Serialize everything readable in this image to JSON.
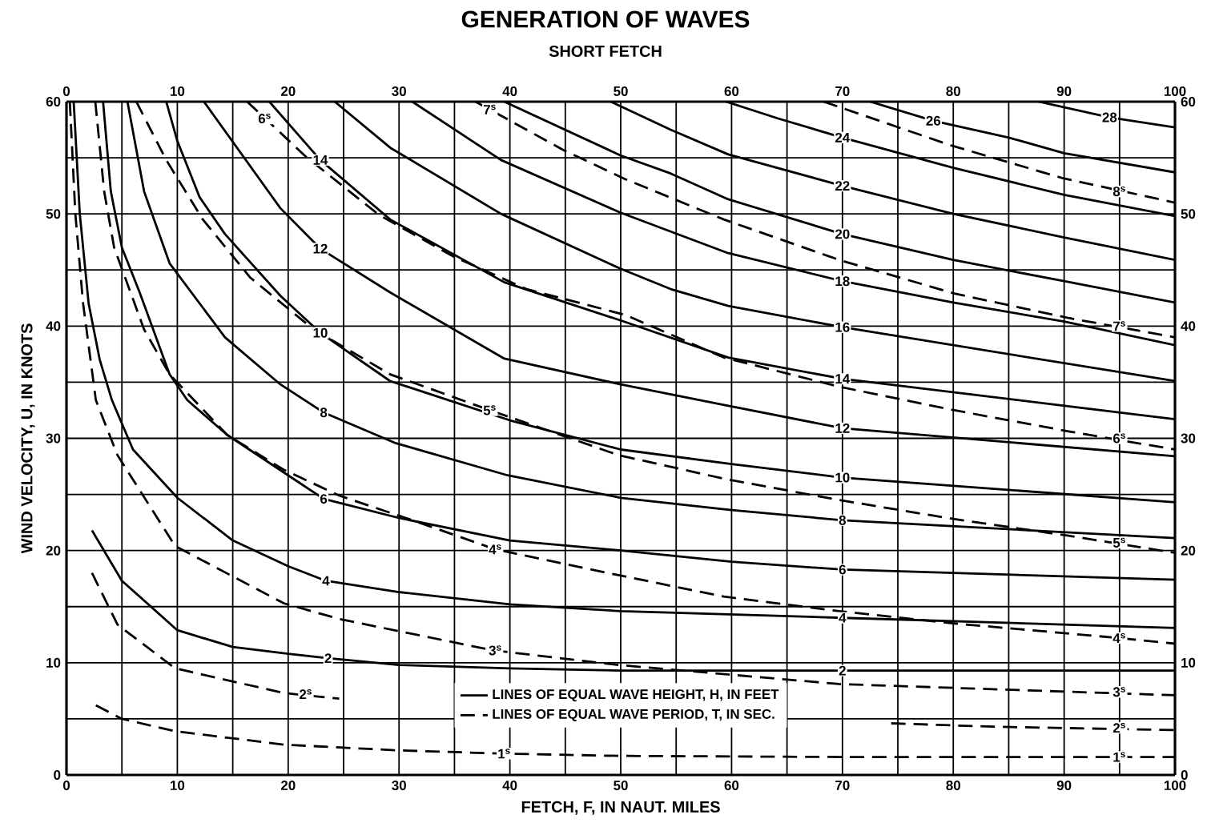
{
  "chart_data": {
    "type": "line",
    "title": "GENERATION OF WAVES",
    "subtitle": "SHORT FETCH",
    "xlabel": "FETCH, F, IN NAUT. MILES",
    "ylabel": "WIND VELOCITY, U, IN KNOTS",
    "xlim": [
      0,
      100
    ],
    "ylim": [
      0,
      60
    ],
    "x2lim": [
      0,
      100
    ],
    "y2lim": [
      0,
      60
    ],
    "xticks": [
      0,
      {
        "value": 5,
        "label": null
      },
      10,
      {
        "value": 15,
        "label": null
      },
      20,
      {
        "value": 25,
        "label": null
      },
      30,
      {
        "value": 35,
        "label": null
      },
      40,
      {
        "value": 45,
        "label": null
      },
      50,
      {
        "value": 55,
        "label": null
      },
      60,
      {
        "value": 65,
        "label": null
      },
      70,
      {
        "value": 75,
        "label": null
      },
      80,
      {
        "value": 85,
        "label": null
      },
      90,
      {
        "value": 95,
        "label": null
      },
      100
    ],
    "x2ticks": [
      0,
      10,
      20,
      30,
      40,
      50,
      60,
      70,
      80,
      90,
      100
    ],
    "yticks": [
      0,
      {
        "value": 5,
        "label": null
      },
      10,
      {
        "value": 15,
        "label": null
      },
      20,
      {
        "value": 25,
        "label": null
      },
      30,
      {
        "value": 35,
        "label": null
      },
      40,
      {
        "value": 45,
        "label": null
      },
      50,
      {
        "value": 55,
        "label": null
      },
      60
    ],
    "y2ticks": [
      0,
      10,
      20,
      30,
      40,
      50,
      60
    ],
    "grid": true,
    "legend": "bottom",
    "series": [
      {
        "name": "LINES OF EQUAL WAVE HEIGHT, H, IN FEET",
        "color": "#000000",
        "line_style": "solid",
        "x": [
          2.3,
          5,
          10,
          15,
          20,
          23.6,
          30,
          40,
          50,
          70,
          100
        ],
        "values": [
          21.8,
          17.3,
          12.9,
          11.4,
          10.8,
          10.4,
          9.8,
          9.5,
          9.3,
          9.3,
          9.3
        ]
      },
      {
        "color": "#000000",
        "line_style": "solid",
        "x": [
          0.65,
          1.2,
          2,
          3,
          4.1,
          6,
          10,
          15,
          20,
          23.4,
          30,
          40,
          50,
          70,
          100
        ],
        "values": [
          60,
          50,
          42,
          37,
          33.4,
          29,
          24.7,
          20.9,
          18.6,
          17.3,
          16.3,
          15.2,
          14.6,
          14.0,
          13.1
        ]
      },
      {
        "color": "#000000",
        "line_style": "solid",
        "x": [
          3.3,
          4,
          5,
          6.6,
          9.3,
          10.9,
          14.5,
          20,
          23.2,
          30,
          40,
          50,
          60,
          70,
          100
        ],
        "values": [
          60,
          52,
          47,
          43,
          35.7,
          33.4,
          30.3,
          26.7,
          24.6,
          22.9,
          20.9,
          20.0,
          19.0,
          18.3,
          17.4
        ]
      },
      {
        "color": "#000000",
        "line_style": "solid",
        "x": [
          5.5,
          7,
          9.3,
          14.3,
          19.3,
          23.2,
          29.6,
          39.8,
          50,
          60,
          70,
          100
        ],
        "values": [
          60,
          52,
          45.6,
          39.0,
          34.8,
          32.3,
          29.6,
          26.7,
          24.7,
          23.6,
          22.7,
          21.1
        ]
      },
      {
        "color": "#000000",
        "line_style": "solid",
        "x": [
          9,
          10,
          12,
          14.3,
          19.3,
          22.9,
          29.2,
          40,
          50,
          60,
          70,
          100
        ],
        "values": [
          60,
          56.5,
          51.5,
          48.2,
          42.7,
          39.4,
          35.1,
          31.6,
          29.0,
          27.7,
          26.5,
          24.3
        ]
      },
      {
        "color": "#000000",
        "line_style": "solid",
        "x": [
          12.4,
          19.3,
          22.9,
          29.2,
          39.5,
          50,
          59.7,
          70,
          100
        ],
        "values": [
          60,
          50.5,
          46.9,
          43.0,
          37.1,
          34.8,
          32.9,
          30.9,
          28.4
        ]
      },
      {
        "color": "#000000",
        "line_style": "solid",
        "x": [
          18.3,
          22.9,
          29.2,
          39.5,
          50,
          59.7,
          70,
          100
        ],
        "values": [
          60,
          54.8,
          49.5,
          43.9,
          40.5,
          37.2,
          35.3,
          31.7
        ]
      },
      {
        "color": "#000000",
        "line_style": "solid",
        "x": [
          24.2,
          29.2,
          39.2,
          50,
          54.5,
          59.7,
          70,
          100
        ],
        "values": [
          60,
          55.9,
          50.0,
          45.1,
          43.3,
          41.8,
          39.9,
          35.1
        ]
      },
      {
        "color": "#000000",
        "line_style": "solid",
        "x": [
          31.2,
          39.2,
          50,
          59.7,
          70,
          80,
          90,
          100
        ],
        "values": [
          60,
          54.8,
          50.1,
          46.5,
          44.0,
          42.1,
          40.4,
          38.3
        ]
      },
      {
        "color": "#000000",
        "line_style": "solid",
        "x": [
          39.5,
          50,
          54.5,
          59.7,
          70,
          80,
          90,
          100
        ],
        "values": [
          60,
          55.2,
          53.6,
          51.3,
          48.2,
          45.9,
          44.0,
          42.1
        ]
      },
      {
        "color": "#000000",
        "line_style": "solid",
        "x": [
          49.1,
          54.5,
          59.7,
          70,
          80,
          90,
          100
        ],
        "values": [
          60,
          57.5,
          55.3,
          52.5,
          50.0,
          47.9,
          45.9
        ]
      },
      {
        "color": "#000000",
        "line_style": "solid",
        "x": [
          59.5,
          64.2,
          70,
          80,
          90,
          100
        ],
        "values": [
          60,
          58.5,
          56.8,
          54.1,
          51.7,
          49.8
        ]
      },
      {
        "color": "#000000",
        "line_style": "solid",
        "x": [
          72.5,
          78.2,
          85,
          90,
          100
        ],
        "values": [
          60,
          58.3,
          56.8,
          55.4,
          53.7
        ]
      },
      {
        "color": "#000000",
        "line_style": "solid",
        "x": [
          87.7,
          94.1,
          100
        ],
        "values": [
          60,
          58.6,
          57.7
        ]
      },
      {
        "name": "LINES OF EQUAL WAVE PERIOD, T, IN SEC.",
        "color": "#000000",
        "line_style": "dashed",
        "x": [
          2.65,
          5,
          9.8,
          19.6,
          29.7,
          39.5,
          49.8,
          70,
          100
        ],
        "values": [
          6.2,
          5.0,
          3.9,
          2.7,
          2.2,
          1.9,
          1.7,
          1.6,
          1.6
        ]
      },
      {
        "color": "#000000",
        "line_style": "dashed",
        "x": [
          2.3,
          4.6,
          9.8,
          19.6,
          24.6,
          50,
          74.4,
          83.6,
          100
        ],
        "values": [
          18.0,
          13.4,
          9.5,
          7.3,
          6.8,
          null,
          4.6,
          4.3,
          4.0
        ]
      },
      {
        "color": "#000000",
        "line_style": "dashed",
        "x": [
          0.3,
          0.8,
          1.5,
          2.65,
          4.6,
          9.8,
          19.6,
          24.6,
          38.5,
          49.8,
          69.7,
          100
        ],
        "values": [
          60,
          50,
          42,
          33.4,
          28.5,
          20.4,
          15.3,
          13.9,
          11.1,
          9.8,
          8.1,
          7.1
        ]
      },
      {
        "color": "#000000",
        "line_style": "dashed",
        "x": [
          2.6,
          3.4,
          4.3,
          7,
          9.3,
          14.5,
          19.6,
          24.6,
          31.5,
          38.7,
          49.8,
          59.3,
          69.7,
          80.1,
          95,
          100
        ],
        "values": [
          60,
          52,
          47,
          39.7,
          35.7,
          30.3,
          27.2,
          24.9,
          22.6,
          20.1,
          17.8,
          15.9,
          14.6,
          13.5,
          12.2,
          11.7
        ]
      },
      {
        "color": "#000000",
        "line_style": "dashed",
        "x": [
          6.3,
          9.0,
          12.3,
          16.6,
          22.3,
          29.2,
          38.2,
          49.8,
          59.3,
          69.7,
          80.1,
          90.5,
          100
        ],
        "values": [
          60,
          54.8,
          49.5,
          44.3,
          39.7,
          35.7,
          32.5,
          28.5,
          26.4,
          24.5,
          22.8,
          21.3,
          19.8
        ]
      },
      {
        "color": "#000000",
        "line_style": "dashed",
        "x": [
          16.3,
          21.6,
          28.2,
          34.9,
          41.5,
          50.4,
          59.3,
          69.7,
          80.1,
          90.5,
          100
        ],
        "values": [
          60,
          55.1,
          49.9,
          46.2,
          43.3,
          41.0,
          37.2,
          34.6,
          32.5,
          30.6,
          29.0
        ]
      },
      {
        "color": "#000000",
        "line_style": "dashed",
        "x": [
          36.9,
          44.8,
          50.4,
          59.3,
          69.7,
          80.1,
          90.5,
          100
        ],
        "values": [
          60,
          55.7,
          53.1,
          49.5,
          45.9,
          42.9,
          40.7,
          39.0
        ]
      },
      {
        "color": "#000000",
        "line_style": "dashed",
        "x": [
          68.3,
          79.8,
          89.8,
          100
        ],
        "values": [
          60,
          56.1,
          53.2,
          51.0
        ]
      }
    ],
    "annotations": [
      {
        "text": "2",
        "x": 23.6,
        "y": 10.4
      },
      {
        "text": "4",
        "x": 23.4,
        "y": 17.3
      },
      {
        "text": "6",
        "x": 23.2,
        "y": 24.6
      },
      {
        "text": "8",
        "x": 23.2,
        "y": 32.3
      },
      {
        "text": "10",
        "x": 22.9,
        "y": 39.4
      },
      {
        "text": "12",
        "x": 22.9,
        "y": 46.9
      },
      {
        "text": "14",
        "x": 22.9,
        "y": 54.8
      },
      {
        "text": "2",
        "x": 70,
        "y": 9.3
      },
      {
        "text": "4",
        "x": 70,
        "y": 14.0
      },
      {
        "text": "6",
        "x": 70,
        "y": 18.3
      },
      {
        "text": "8",
        "x": 70,
        "y": 22.7
      },
      {
        "text": "10",
        "x": 70,
        "y": 26.5
      },
      {
        "text": "12",
        "x": 70,
        "y": 30.9
      },
      {
        "text": "14",
        "x": 70,
        "y": 35.3
      },
      {
        "text": "16",
        "x": 70,
        "y": 39.9
      },
      {
        "text": "18",
        "x": 70,
        "y": 44.0
      },
      {
        "text": "20",
        "x": 70,
        "y": 48.2
      },
      {
        "text": "22",
        "x": 70,
        "y": 52.5
      },
      {
        "text": "24",
        "x": 70,
        "y": 56.8
      },
      {
        "text": "26",
        "x": 78.2,
        "y": 58.3
      },
      {
        "text": "28",
        "x": 94.1,
        "y": 58.6
      },
      {
        "text": "1$^{s}$",
        "x": 39.5,
        "y": 1.9
      },
      {
        "text": "1$^{s}$",
        "x": 95,
        "y": 1.6
      },
      {
        "text": "2$^{s}$",
        "x": 21.6,
        "y": 7.2
      },
      {
        "text": "2$^{s}$",
        "x": 95,
        "y": 4.2
      },
      {
        "text": "3$^{s}$",
        "x": 38.7,
        "y": 11.1
      },
      {
        "text": "3$^{s}$",
        "x": 95,
        "y": 7.4
      },
      {
        "text": "4$^{s}$",
        "x": 38.7,
        "y": 20.1
      },
      {
        "text": "4$^{s}$",
        "x": 95,
        "y": 12.2
      },
      {
        "text": "5$^{s}$",
        "x": 38.2,
        "y": 32.5
      },
      {
        "text": "5$^{s}$",
        "x": 95,
        "y": 20.7
      },
      {
        "text": "6$^{s}$",
        "x": 17.9,
        "y": 58.5
      },
      {
        "text": "6$^{s}$",
        "x": 95,
        "y": 30.0
      },
      {
        "text": "7$^{s}$",
        "x": 38.2,
        "y": 59.3
      },
      {
        "text": "7$^{s}$",
        "x": 95,
        "y": 40.0
      },
      {
        "text": "8$^{s}$",
        "x": 95,
        "y": 52.0
      }
    ]
  }
}
